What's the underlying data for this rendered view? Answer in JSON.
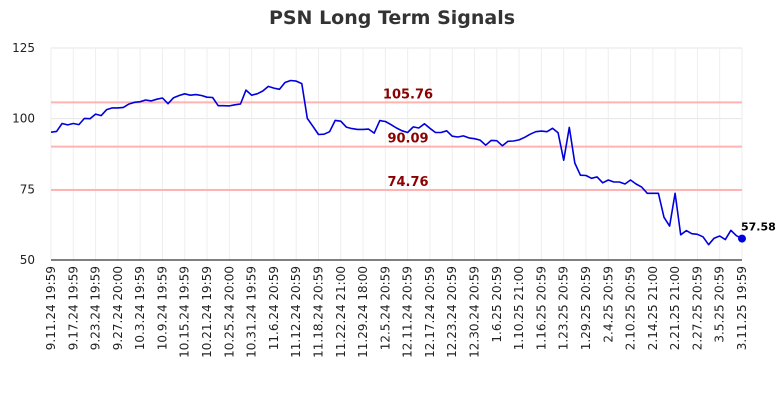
{
  "chart_data": {
    "type": "line",
    "title": "PSN Long Term Signals",
    "ylim": [
      50,
      125
    ],
    "yticks": [
      50,
      75,
      100,
      125
    ],
    "x_tick_labels": [
      "9.11.24 19:59",
      "9.17.24 19:59",
      "9.23.24 19:59",
      "9.27.24 20:00",
      "10.3.24 19:59",
      "10.9.24 19:59",
      "10.15.24 19:59",
      "10.21.24 19:59",
      "10.25.24 20:00",
      "10.31.24 19:59",
      "11.6.24 20:59",
      "11.12.24 20:59",
      "11.18.24 20:59",
      "11.22.24 21:00",
      "11.29.24 18:00",
      "12.5.24 20:59",
      "12.11.24 20:59",
      "12.17.24 20:59",
      "12.23.24 20:59",
      "12.30.24 20:59",
      "1.6.25 20:59",
      "1.10.25 21:00",
      "1.16.25 20:59",
      "1.23.25 20:59",
      "1.29.25 20:59",
      "2.4.25 20:59",
      "2.10.25 20:59",
      "2.14.25 21:00",
      "2.21.25 21:00",
      "2.27.25 20:59",
      "3.5.25 20:59",
      "3.11.25 19:59"
    ],
    "reference_lines": [
      {
        "value": 105.76,
        "label": "105.76",
        "color": "#ffb3b3"
      },
      {
        "value": 90.09,
        "label": "90.09",
        "color": "#ffb3b3"
      },
      {
        "value": 74.76,
        "label": "74.76",
        "color": "#ffb3b3"
      }
    ],
    "series": [
      {
        "color": "#0000dd",
        "values": [
          95.2,
          95.5,
          98.3,
          97.8,
          98.3,
          97.9,
          100.1,
          100.0,
          101.6,
          101.1,
          103.2,
          103.8,
          103.8,
          104.0,
          105.2,
          105.8,
          106.0,
          106.6,
          106.3,
          106.9,
          107.3,
          105.3,
          107.4,
          108.2,
          108.8,
          108.3,
          108.5,
          108.2,
          107.6,
          107.5,
          104.6,
          104.6,
          104.5,
          104.9,
          105.2,
          110.1,
          108.3,
          108.8,
          109.8,
          111.4,
          110.8,
          110.4,
          112.8,
          113.5,
          113.3,
          112.4,
          100.1,
          97.3,
          94.4,
          94.5,
          95.4,
          99.4,
          99.1,
          97.0,
          96.5,
          96.2,
          96.2,
          96.3,
          94.9,
          99.3,
          99.0,
          97.9,
          96.7,
          95.7,
          95.1,
          97.1,
          96.7,
          98.2,
          96.6,
          95.1,
          95.1,
          95.7,
          93.8,
          93.5,
          93.9,
          93.2,
          92.9,
          92.4,
          90.6,
          92.3,
          92.2,
          90.4,
          92.0,
          92.1,
          92.5,
          93.4,
          94.5,
          95.4,
          95.6,
          95.4,
          96.6,
          95.0,
          85.3,
          96.9,
          84.3,
          80.0,
          79.9,
          78.9,
          79.4,
          77.3,
          78.3,
          77.6,
          77.6,
          76.9,
          78.3,
          76.9,
          75.8,
          73.6,
          73.6,
          73.6,
          65.1,
          62.0,
          73.6,
          58.9,
          60.4,
          59.3,
          59.1,
          58.2,
          55.4,
          57.7,
          58.5,
          57.2,
          60.5,
          58.6,
          57.58
        ]
      }
    ],
    "last_value_label": "57.58"
  }
}
